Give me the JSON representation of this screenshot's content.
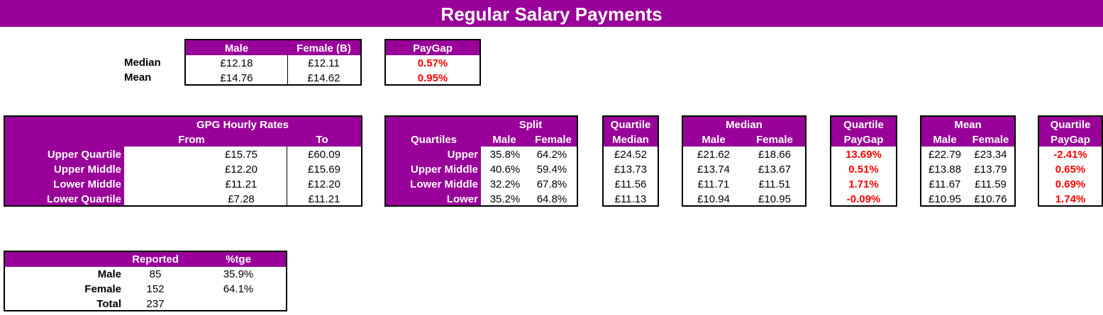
{
  "title": "Regular Salary Payments",
  "summary": {
    "col_male": "Male",
    "col_female": "Female (B)",
    "col_paygap": "PayGap",
    "rows": [
      {
        "label": "Median",
        "male": "£12.18",
        "female": "£12.11",
        "paygap": "0.57%"
      },
      {
        "label": "Mean",
        "male": "£14.76",
        "female": "£14.62",
        "paygap": "0.95%"
      }
    ]
  },
  "gpg": {
    "header": "GPG Hourly Rates",
    "from": "From",
    "to": "To",
    "rows": [
      {
        "label": "Upper Quartile",
        "from": "£15.75",
        "to": "£60.09"
      },
      {
        "label": "Upper Middle",
        "from": "£12.20",
        "to": "£15.69"
      },
      {
        "label": "Lower Middle",
        "from": "£11.21",
        "to": "£12.20"
      },
      {
        "label": "Lower Quartile",
        "from": "£7.28",
        "to": "£11.21"
      }
    ]
  },
  "split": {
    "header": "Split",
    "quartiles": "Quartiles",
    "male": "Male",
    "female": "Female",
    "rows": [
      {
        "label": "Upper",
        "male": "35.8%",
        "female": "64.2%"
      },
      {
        "label": "Upper Middle",
        "male": "40.6%",
        "female": "59.4%"
      },
      {
        "label": "Lower Middle",
        "male": "32.2%",
        "female": "67.8%"
      },
      {
        "label": "Lower",
        "male": "35.2%",
        "female": "64.8%"
      }
    ]
  },
  "quartile_median": {
    "header1": "Quartile",
    "header2": "Median",
    "values": [
      "£24.52",
      "£13.73",
      "£11.56",
      "£11.13"
    ]
  },
  "median": {
    "header": "Median",
    "male": "Male",
    "female": "Female",
    "rows": [
      {
        "male": "£21.62",
        "female": "£18.66"
      },
      {
        "male": "£13.74",
        "female": "£13.67"
      },
      {
        "male": "£11.71",
        "female": "£11.51"
      },
      {
        "male": "£10.94",
        "female": "£10.95"
      }
    ]
  },
  "median_paygap": {
    "header1": "Quartile",
    "header2": "PayGap",
    "values": [
      "13.69%",
      "0.51%",
      "1.71%",
      "-0.09%"
    ]
  },
  "mean": {
    "header": "Mean",
    "male": "Male",
    "female": "Female",
    "rows": [
      {
        "male": "£22.79",
        "female": "£23.34"
      },
      {
        "male": "£13.88",
        "female": "£13.79"
      },
      {
        "male": "£11.67",
        "female": "£11.59"
      },
      {
        "male": "£10.95",
        "female": "£10.76"
      }
    ]
  },
  "mean_paygap": {
    "header1": "Quartile",
    "header2": "PayGap",
    "values": [
      "-2.41%",
      "0.65%",
      "0.69%",
      "1.74%"
    ]
  },
  "reported": {
    "col_reported": "Reported",
    "col_pct": "%tge",
    "rows": [
      {
        "label": "Male",
        "reported": "85",
        "pct": "35.9%"
      },
      {
        "label": "Female",
        "reported": "152",
        "pct": "64.1%"
      },
      {
        "label": "Total",
        "reported": "237",
        "pct": ""
      }
    ]
  },
  "colors": {
    "accent": "#990099",
    "negative": "#ff0000"
  }
}
